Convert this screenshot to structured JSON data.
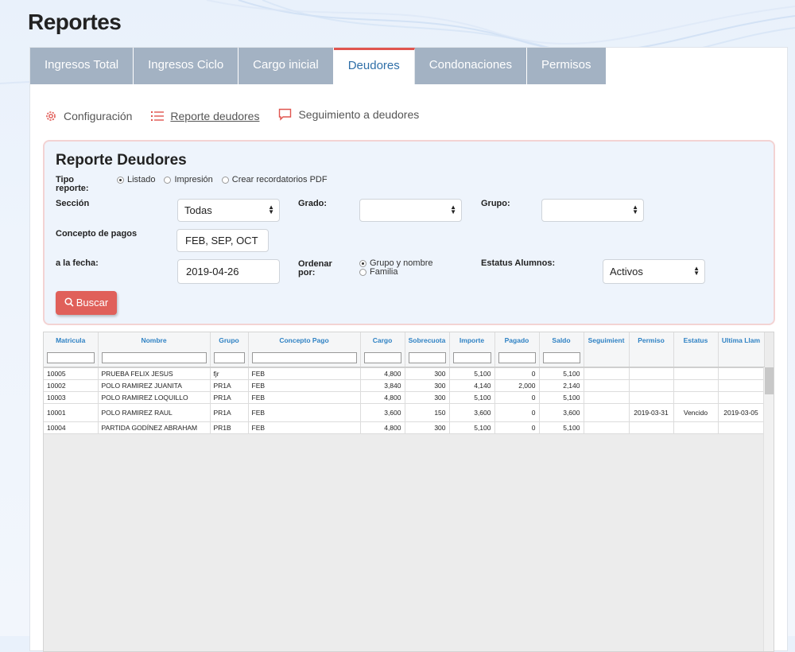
{
  "page": {
    "title": "Reportes"
  },
  "tabs": [
    {
      "label": "Ingresos Total"
    },
    {
      "label": "Ingresos Ciclo"
    },
    {
      "label": "Cargo inicial"
    },
    {
      "label": "Deudores"
    },
    {
      "label": "Condonaciones"
    },
    {
      "label": "Permisos"
    }
  ],
  "subnav": {
    "config": "Configuración",
    "reporte": "Reporte deudores",
    "seguimiento": "Seguimiento a deudores"
  },
  "form": {
    "title": "Reporte Deudores",
    "tipo_reporte_label": "Tipo reporte:",
    "tipo_options": [
      "Listado",
      "Impresión",
      "Crear recordatorios PDF"
    ],
    "seccion_label": "Sección",
    "seccion_value": "Todas",
    "grado_label": "Grado:",
    "grado_value": "",
    "grupo_label": "Grupo:",
    "grupo_value": "",
    "concepto_label": "Concepto de pagos",
    "concepto_value": "FEB, SEP, OCT",
    "fecha_label": "a la fecha:",
    "fecha_value": "2019-04-26",
    "ordenar_label": "Ordenar por:",
    "ordenar_options": [
      "Grupo y nombre",
      "Familia"
    ],
    "estatus_label": "Estatus Alumnos:",
    "estatus_value": "Activos",
    "buscar_label": "Buscar"
  },
  "grid": {
    "columns": [
      "Matricula",
      "Nombre",
      "Grupo",
      "Concepto Pago",
      "Cargo",
      "Sobrecuota",
      "Importe",
      "Pagado",
      "Saldo",
      "Seguimient",
      "Permiso",
      "Estatus",
      "Ultima Llam"
    ],
    "rows": [
      [
        "10005",
        "PRUEBA FELIX JESUS",
        "fjr",
        "FEB",
        "4,800",
        "300",
        "5,100",
        "0",
        "5,100",
        "",
        "",
        "",
        ""
      ],
      [
        "10002",
        "POLO RAMIREZ JUANITA",
        "PR1A",
        "FEB",
        "3,840",
        "300",
        "4,140",
        "2,000",
        "2,140",
        "",
        "",
        "",
        ""
      ],
      [
        "10003",
        "POLO RAMIREZ LOQUILLO",
        "PR1A",
        "FEB",
        "4,800",
        "300",
        "5,100",
        "0",
        "5,100",
        "",
        "",
        "",
        ""
      ],
      [
        "10001",
        "POLO RAMIREZ RAUL",
        "PR1A",
        "FEB",
        "3,600",
        "150",
        "3,600",
        "0",
        "3,600",
        "",
        "2019-03-31",
        "Vencido",
        "2019-03-05"
      ],
      [
        "10004",
        "PARTIDA GODÍNEZ ABRAHAM",
        "PR1B",
        "FEB",
        "4,800",
        "300",
        "5,100",
        "0",
        "5,100",
        "",
        "",
        "",
        ""
      ]
    ]
  }
}
